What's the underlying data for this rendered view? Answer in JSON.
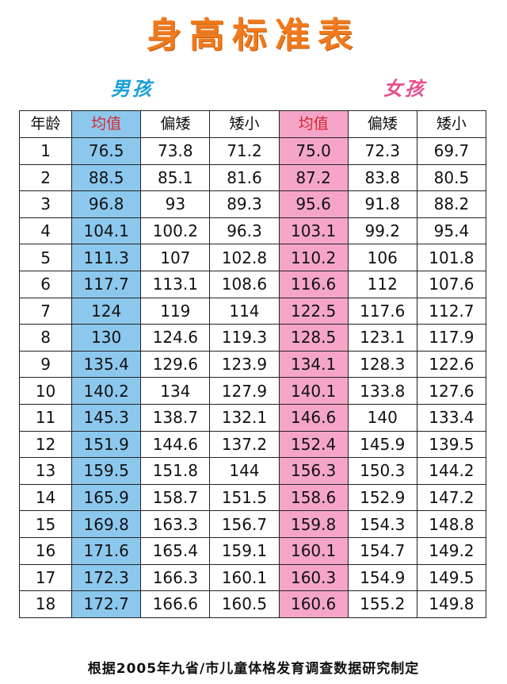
{
  "title": "身高标准表",
  "boys_label": "男孩",
  "girls_label": "女孩",
  "headers": [
    "年龄",
    "均值",
    "偏矮",
    "矮小",
    "均值",
    "偏矮",
    "矮小"
  ],
  "rows": [
    [
      "1",
      "76.5",
      "73.8",
      "71.2",
      "75.0",
      "72.3",
      "69.7"
    ],
    [
      "2",
      "88.5",
      "85.1",
      "81.6",
      "87.2",
      "83.8",
      "80.5"
    ],
    [
      "3",
      "96.8",
      "93",
      "89.3",
      "95.6",
      "91.8",
      "88.2"
    ],
    [
      "4",
      "104.1",
      "100.2",
      "96.3",
      "103.1",
      "99.2",
      "95.4"
    ],
    [
      "5",
      "111.3",
      "107",
      "102.8",
      "110.2",
      "106",
      "101.8"
    ],
    [
      "6",
      "117.7",
      "113.1",
      "108.6",
      "116.6",
      "112",
      "107.6"
    ],
    [
      "7",
      "124",
      "119",
      "114",
      "122.5",
      "117.6",
      "112.7"
    ],
    [
      "8",
      "130",
      "124.6",
      "119.3",
      "128.5",
      "123.1",
      "117.9"
    ],
    [
      "9",
      "135.4",
      "129.6",
      "123.9",
      "134.1",
      "128.3",
      "122.6"
    ],
    [
      "10",
      "140.2",
      "134",
      "127.9",
      "140.1",
      "133.8",
      "127.6"
    ],
    [
      "11",
      "145.3",
      "138.7",
      "132.1",
      "146.6",
      "140",
      "133.4"
    ],
    [
      "12",
      "151.9",
      "144.6",
      "137.2",
      "152.4",
      "145.9",
      "139.5"
    ],
    [
      "13",
      "159.5",
      "151.8",
      "144",
      "156.3",
      "150.3",
      "144.2"
    ],
    [
      "14",
      "165.9",
      "158.7",
      "151.5",
      "158.6",
      "152.9",
      "147.2"
    ],
    [
      "15",
      "169.8",
      "163.3",
      "156.7",
      "159.8",
      "154.3",
      "148.8"
    ],
    [
      "16",
      "171.6",
      "165.4",
      "159.1",
      "160.1",
      "154.7",
      "149.2"
    ],
    [
      "17",
      "172.3",
      "166.3",
      "160.1",
      "160.3",
      "154.9",
      "149.5"
    ],
    [
      "18",
      "172.7",
      "166.6",
      "160.5",
      "160.6",
      "155.2",
      "149.8"
    ]
  ],
  "footer": "根据2005年九省/市儿童体格发育调查数据研究制定",
  "colors": {
    "title": "#f07a1c",
    "boys": "#1a9fd6",
    "girls": "#e8508a",
    "boys_avg_fill": "#8cc8ee",
    "girls_avg_fill": "#f5a6c8",
    "avg_header_text": "#d8262e"
  }
}
